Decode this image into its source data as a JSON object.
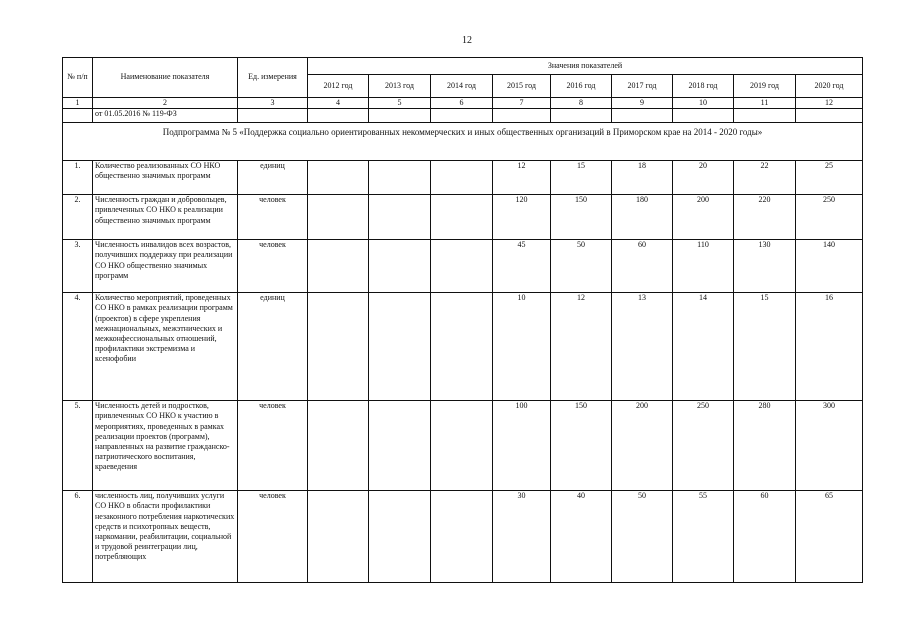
{
  "page_number": "12",
  "table": {
    "headers": {
      "num": "№ п/п",
      "name": "Наименование показателя",
      "unit": "Ед. измерения",
      "values_group": "Значения показателей",
      "years": [
        "2012 год",
        "2013 год",
        "2014 год",
        "2015 год",
        "2016 год",
        "2017 год",
        "2018 год",
        "2019 год",
        "2020 год"
      ]
    },
    "column_numbers": [
      "1",
      "2",
      "3",
      "4",
      "5",
      "6",
      "7",
      "8",
      "9",
      "10",
      "11",
      "12"
    ],
    "continuation_text": "от 01.05.2016 № 119-ФЗ",
    "subprogram_title": "Подпрограмма № 5 «Поддержка социально ориентированных некоммерческих и иных общественных организаций в Приморском крае на 2014 - 2020 годы»",
    "rows": [
      {
        "num": "1.",
        "name": "Количество реализованных СО НКО общественно значимых программ",
        "unit": "единиц",
        "values": [
          "",
          "",
          "",
          "12",
          "15",
          "18",
          "20",
          "22",
          "25"
        ]
      },
      {
        "num": "2.",
        "name": "Численность граждан и добровольцев, привлеченных СО НКО к реализации общественно значимых программ",
        "unit": "человек",
        "values": [
          "",
          "",
          "",
          "120",
          "150",
          "180",
          "200",
          "220",
          "250"
        ]
      },
      {
        "num": "3.",
        "name": "Численность инвалидов всех возрастов, получивших поддержку при реализации СО НКО общественно значимых программ",
        "unit": "человек",
        "values": [
          "",
          "",
          "",
          "45",
          "50",
          "60",
          "110",
          "130",
          "140"
        ]
      },
      {
        "num": "4.",
        "name": "Количество мероприятий, проведенных СО НКО в рамках реализации программ (проектов) в сфере укрепления межнациональных, межэтнических и межконфессиональных отношений, профилактики экстремизма и ксенофобии",
        "unit": "единиц",
        "values": [
          "",
          "",
          "",
          "10",
          "12",
          "13",
          "14",
          "15",
          "16"
        ]
      },
      {
        "num": "5.",
        "name": "Численность детей и подростков, привлеченных СО НКО к участию в мероприятиях, проведенных в рамках реализации проектов (программ), направленных на развитие гражданско-патриотического воспитания, краеведения",
        "unit": "человек",
        "values": [
          "",
          "",
          "",
          "100",
          "150",
          "200",
          "250",
          "280",
          "300"
        ]
      },
      {
        "num": "6.",
        "name": "численность лиц, получивших услуги СО НКО в области профилактики незаконного потребления наркотических средств и психотропных веществ, наркомании, реабилитации, социальной и трудовой реинтеграции лиц, потребляющих",
        "unit": "человек",
        "values": [
          "",
          "",
          "",
          "30",
          "40",
          "50",
          "55",
          "60",
          "65"
        ]
      }
    ]
  }
}
